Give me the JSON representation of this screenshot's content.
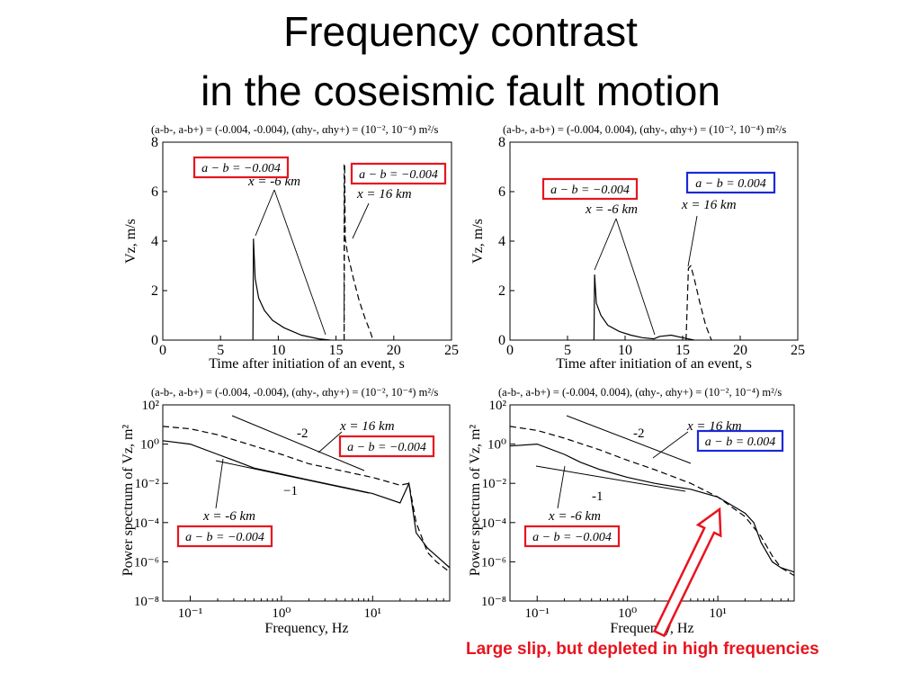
{
  "slide": {
    "title_line1": "Frequency contrast",
    "title_line2": "in the coseismic fault motion",
    "caption": "Large slip, but depleted in high frequencies"
  },
  "colors": {
    "red_box": "#e8141e",
    "blue_box": "#1a2ad8",
    "arrow": "#e8141e"
  },
  "chart_data": [
    {
      "type": "line",
      "header": "(a-b-, a-b+) = (-0.004, -0.004), (αhy-, αhy+) = (10⁻², 10⁻⁴) m²/s",
      "xlabel": "Time after initiation of an event, s",
      "ylabel": "Vz, m/s",
      "xlim": [
        0,
        25
      ],
      "ylim": [
        0,
        8
      ],
      "xticks": [
        0,
        5,
        10,
        15,
        20,
        25
      ],
      "yticks": [
        0,
        2,
        4,
        6,
        8
      ],
      "series": [
        {
          "style": "solid",
          "x": [
            7.8,
            7.85,
            8.0,
            8.3,
            8.8,
            9.5,
            10.5,
            12,
            13.5,
            14.5
          ],
          "y": [
            0,
            4.1,
            2.5,
            1.7,
            1.2,
            0.8,
            0.5,
            0.2,
            0.05,
            0
          ]
        },
        {
          "style": "dashed",
          "x": [
            15.7,
            15.75,
            15.8,
            16.0,
            16.5,
            17.0,
            17.5,
            18.0,
            18.2
          ],
          "y": [
            0,
            7.1,
            4.1,
            3.5,
            2.5,
            1.6,
            0.9,
            0.3,
            0
          ]
        }
      ],
      "annotations": [
        {
          "text": "x = -6 km"
        },
        {
          "text": "x = 16 km"
        }
      ],
      "boxes": [
        {
          "text": "a − b = −0.004",
          "color": "red"
        },
        {
          "text": "a − b = −0.004",
          "color": "red"
        }
      ]
    },
    {
      "type": "line",
      "header": "(a-b-, a-b+) = (-0.004, 0.004), (αhy-, αhy+) = (10⁻², 10⁻⁴) m²/s",
      "xlabel": "Time after initiation of an event, s",
      "ylabel": "Vz, m/s",
      "xlim": [
        0,
        25
      ],
      "ylim": [
        0,
        8
      ],
      "xticks": [
        0,
        5,
        10,
        15,
        20,
        25
      ],
      "yticks": [
        0,
        2,
        4,
        6,
        8
      ],
      "series": [
        {
          "style": "solid",
          "x": [
            7.3,
            7.35,
            7.5,
            7.9,
            8.5,
            9.5,
            10.5,
            11.5,
            12.5,
            13,
            14,
            15,
            16
          ],
          "y": [
            0,
            2.65,
            1.5,
            1.0,
            0.6,
            0.35,
            0.2,
            0.1,
            0.05,
            0.15,
            0.2,
            0.1,
            0
          ]
        },
        {
          "style": "dashed",
          "x": [
            15.3,
            15.5,
            15.7,
            16.0,
            16.5,
            17.0,
            17.5
          ],
          "y": [
            0,
            2.9,
            3.0,
            2.5,
            1.5,
            0.6,
            0
          ]
        }
      ],
      "annotations": [
        {
          "text": "x = -6 km"
        },
        {
          "text": "x = 16 km"
        }
      ],
      "boxes": [
        {
          "text": "a − b = −0.004",
          "color": "red"
        },
        {
          "text": "a − b = 0.004",
          "color": "blue"
        }
      ]
    },
    {
      "type": "line",
      "scale": "log-log",
      "header": "(a-b-, a-b+) = (-0.004, -0.004), (αhy-, αhy+) = (10⁻², 10⁻⁴) m²/s",
      "xlabel": "Frequency, Hz",
      "ylabel": "Power spectrum of Vz, m²",
      "xlim": [
        0.05,
        70
      ],
      "ylim": [
        1e-08,
        100
      ],
      "xticks_labels": [
        "10⁻¹",
        "10⁰",
        "10¹"
      ],
      "yticks_labels": [
        "10²",
        "10⁰",
        "10⁻²",
        "10⁻⁴",
        "10⁻⁶",
        "10⁻⁸"
      ],
      "series": [
        {
          "style": "dashed",
          "x": [
            0.05,
            0.1,
            0.2,
            0.5,
            1,
            2,
            5,
            10,
            20,
            25,
            30,
            40,
            50,
            70
          ],
          "y": [
            8,
            6,
            3,
            0.8,
            0.3,
            0.1,
            0.04,
            0.02,
            0.008,
            0.01,
            0.0001,
            3e-06,
            1e-06,
            3e-07
          ]
        },
        {
          "style": "solid",
          "x": [
            0.05,
            0.1,
            0.2,
            0.3,
            0.5,
            1,
            2,
            5,
            10,
            20,
            25,
            30,
            40,
            50,
            70
          ],
          "y": [
            1.5,
            1.0,
            0.3,
            0.15,
            0.06,
            0.03,
            0.015,
            0.006,
            0.003,
            0.001,
            0.01,
            3e-05,
            5e-06,
            2e-06,
            5e-07
          ]
        }
      ],
      "slopes": [
        {
          "text": "-2"
        },
        {
          "text": "−1"
        }
      ],
      "annotations": [
        {
          "text": "x = 16 km"
        },
        {
          "text": "x = -6 km"
        }
      ],
      "boxes": [
        {
          "text": "a − b = −0.004",
          "color": "red"
        },
        {
          "text": "a − b = −0.004",
          "color": "red"
        }
      ]
    },
    {
      "type": "line",
      "scale": "log-log",
      "header": "(a-b-, a-b+) = (-0.004, 0.004), (αhy-, αhy+) = (10⁻², 10⁻⁴) m²/s",
      "xlabel": "Frequency, Hz",
      "ylabel": "Power spectrum of Vz, m²",
      "xlim": [
        0.05,
        70
      ],
      "ylim": [
        1e-08,
        100
      ],
      "xticks_labels": [
        "10⁻¹",
        "10⁰",
        "10¹"
      ],
      "yticks_labels": [
        "10²",
        "10⁰",
        "10⁻²",
        "10⁻⁴",
        "10⁻⁶",
        "10⁻⁸"
      ],
      "series": [
        {
          "style": "dashed",
          "x": [
            0.05,
            0.1,
            0.2,
            0.5,
            1,
            2,
            5,
            10,
            20,
            30,
            40,
            50,
            70
          ],
          "y": [
            8,
            5,
            2,
            0.5,
            0.15,
            0.05,
            0.01,
            0.002,
            0.0002,
            2e-05,
            2e-06,
            5e-07,
            2e-07
          ]
        },
        {
          "style": "solid",
          "x": [
            0.05,
            0.1,
            0.2,
            0.3,
            0.5,
            1,
            2,
            5,
            10,
            20,
            25,
            30,
            40,
            50,
            70
          ],
          "y": [
            0.8,
            1.0,
            0.3,
            0.12,
            0.05,
            0.02,
            0.01,
            0.005,
            0.002,
            0.0003,
            0.0001,
            1e-05,
            1e-06,
            5e-07,
            3e-07
          ]
        }
      ],
      "slopes": [
        {
          "text": "-2"
        },
        {
          "text": "-1"
        }
      ],
      "annotations": [
        {
          "text": "x = 16 km"
        },
        {
          "text": "x = -6 km"
        }
      ],
      "boxes": [
        {
          "text": "a − b = 0.004",
          "color": "blue"
        },
        {
          "text": "a − b = −0.004",
          "color": "red"
        }
      ]
    }
  ]
}
